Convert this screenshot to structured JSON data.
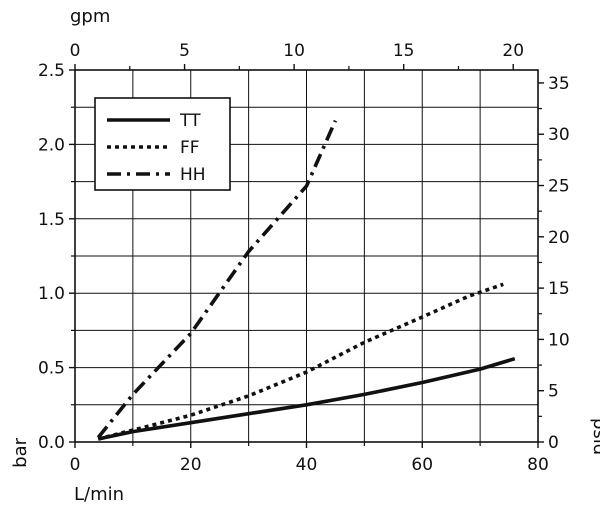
{
  "chart_data": {
    "type": "line",
    "title": "",
    "xlabel": "L/min",
    "ylabel": "bar",
    "x_top_label": "gpm",
    "y_right_label": "psid",
    "xlim": [
      0,
      80
    ],
    "ylim": [
      0,
      2.5
    ],
    "x_top_lim": [
      0,
      21.13
    ],
    "y_right_lim": [
      0,
      36.26
    ],
    "x_ticks": [
      "0",
      "20",
      "40",
      "60",
      "80"
    ],
    "y_ticks": [
      "0.0",
      "0.5",
      "1.0",
      "1.5",
      "2.0",
      "2.5"
    ],
    "x_top_ticks": [
      "0",
      "5",
      "10",
      "15",
      "20"
    ],
    "y_right_ticks": [
      "0",
      "5",
      "10",
      "15",
      "20",
      "25",
      "30",
      "35"
    ],
    "grid": true,
    "legend_position": "top-left",
    "series": [
      {
        "name": "TT",
        "style": "solid",
        "x": [
          4,
          10,
          20,
          30,
          40,
          50,
          60,
          70,
          76
        ],
        "y": [
          0.02,
          0.07,
          0.13,
          0.19,
          0.25,
          0.32,
          0.4,
          0.49,
          0.56
        ]
      },
      {
        "name": "FF",
        "style": "dotted",
        "x": [
          4,
          10,
          20,
          30,
          40,
          50,
          60,
          68,
          74
        ],
        "y": [
          0.02,
          0.08,
          0.18,
          0.31,
          0.47,
          0.67,
          0.84,
          0.98,
          1.06
        ]
      },
      {
        "name": "HH",
        "style": "dashdot",
        "x": [
          4,
          10,
          20,
          30,
          40,
          45
        ],
        "y": [
          0.03,
          0.32,
          0.73,
          1.28,
          1.72,
          2.16
        ]
      }
    ]
  }
}
